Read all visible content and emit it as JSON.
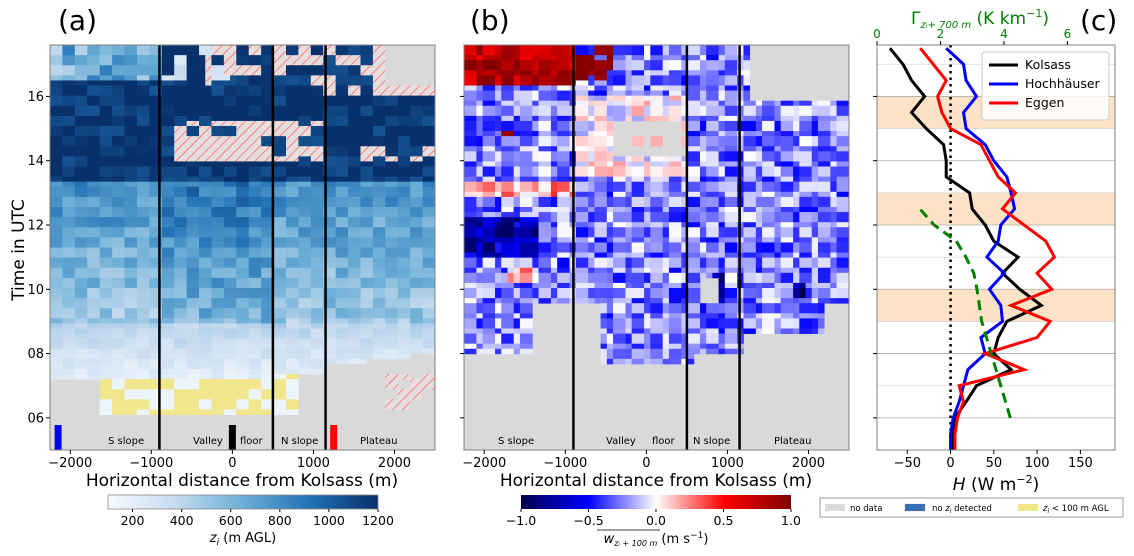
{
  "figure": {
    "panel_labels": [
      "(a)",
      "(b)",
      "(c)"
    ]
  },
  "chart_data": [
    {
      "type": "heatmap",
      "panel": "(a)",
      "xlabel": "Horizontal distance from Kolsass (m)",
      "ylabel": "Time in UTC",
      "xlim": [
        -2250,
        2500
      ],
      "ylim": [
        5.0,
        17.6
      ],
      "xticks": [
        -2000,
        -1000,
        0,
        1000,
        2000
      ],
      "xtick_labels": [
        "−2000",
        "−1000",
        "0",
        "1000",
        "2000"
      ],
      "yticks": [
        6,
        8,
        10,
        12,
        14,
        16
      ],
      "ytick_labels": [
        "06",
        "08",
        "10",
        "12",
        "14",
        "16"
      ],
      "region_dividers_x": [
        -900,
        500,
        1150
      ],
      "region_labels": [
        {
          "text": "S slope",
          "x": -1500
        },
        {
          "text": "Valley",
          "x": -300
        },
        {
          "text": "floor",
          "x": 200
        },
        {
          "text": "N slope",
          "x": 820
        },
        {
          "text": "Plateau",
          "x": 1830
        }
      ],
      "site_markers": [
        {
          "name": "Hochhäuser",
          "x": -2150,
          "color": "#0000ff"
        },
        {
          "name": "Kolsass",
          "x": 0,
          "color": "#000000"
        },
        {
          "name": "Eggen",
          "x": 1250,
          "color": "#ff0000"
        }
      ],
      "colorbar": {
        "label": "z_i (m AGL)",
        "label_main": "z",
        "label_sub": "i",
        "label_rest": " (m AGL)",
        "range": [
          100,
          1200
        ],
        "ticks": [
          "200",
          "400",
          "600",
          "800",
          "1000",
          "1200"
        ],
        "tick_values": [
          200,
          400,
          600,
          800,
          1000,
          1200
        ],
        "colormap": "Blues"
      },
      "description": "z_i grows from ~100-300 m at 07-09 UTC to ~500-700 m at 10-13 UTC and exceeds 1100 m after 13.5 UTC; no data before ~07 UTC; hatched areas mark no z_i detected (mostly 14-17.5 UTC over valley floor and plateau); yellow marks z_i < 100 m AGL (06-07 UTC)."
    },
    {
      "type": "heatmap",
      "panel": "(b)",
      "xlabel": "Horizontal distance from Kolsass (m)",
      "xlim": [
        -2250,
        2500
      ],
      "ylim": [
        5.0,
        17.6
      ],
      "xticks": [
        -2000,
        -1000,
        0,
        1000,
        2000
      ],
      "xtick_labels": [
        "−2000",
        "−1000",
        "0",
        "1000",
        "2000"
      ],
      "region_dividers_x": [
        -900,
        500,
        1150
      ],
      "region_labels": [
        {
          "text": "S slope",
          "x": -1500
        },
        {
          "text": "Valley",
          "x": -300
        },
        {
          "text": "floor",
          "x": 200
        },
        {
          "text": "N slope",
          "x": 820
        },
        {
          "text": "Plateau",
          "x": 1830
        }
      ],
      "colorbar": {
        "label": "w_{z_i+100 m} (m s^-1)",
        "label_main": "w",
        "label_sub": "zᵢ + 100 m",
        "label_rest": " (m s",
        "label_sup": "−1",
        "label_close": ")",
        "range": [
          -1.0,
          1.0
        ],
        "ticks": [
          "−1.0",
          "−0.5",
          "0.0",
          "0.5",
          "1.0"
        ],
        "tick_values": [
          -1.0,
          -0.5,
          0.0,
          0.5,
          1.0
        ],
        "colormap": "seismic"
      },
      "description": "Mostly weak subsidence (-0.1 to -0.5 m/s) between 08 and 14 UTC, strongest (-0.6 to -1.0) near -1800 m at 11.5 UTC and near 900 m / 1800 m at 9.5-10 UTC; strong updrafts (+0.6 to +1.0) over the S slope after 16.5 UTC; no data before ~07.5 UTC."
    },
    {
      "type": "line",
      "panel": "(c)",
      "xlabel": "H (W m^-2)",
      "xlabel_main": "H",
      "xlabel_rest": " (W m",
      "xlabel_sup": "−2",
      "xlabel_close": ")",
      "xlim": [
        -85,
        190
      ],
      "ylim": [
        5.0,
        17.6
      ],
      "xticks": [
        -50,
        0,
        50,
        100,
        150
      ],
      "xtick_labels": [
        "−50",
        "0",
        "50",
        "100",
        "150"
      ],
      "top_xlabel": "Γ_{z_i+700 m} (K km^-1)",
      "top_xlabel_main": "Γ",
      "top_xlabel_sub": "zᵢ+ 700 m",
      "top_xlabel_rest": " (K km",
      "top_xlabel_sup": "−1",
      "top_xlabel_close": ")",
      "top_xlim": [
        0,
        7.5
      ],
      "top_xticks": [
        0,
        2,
        4,
        6
      ],
      "top_xtick_labels": [
        "0",
        "2",
        "4",
        "6"
      ],
      "top_axis_color": "#008000",
      "shaded_bands_utc": [
        [
          9,
          10
        ],
        [
          12,
          13
        ],
        [
          15,
          16
        ]
      ],
      "band_color": "#fde3c5",
      "zero_line": "dotted",
      "legend": {
        "placement": "upper-right",
        "entries": [
          "Kolsass",
          "Hochhäuser",
          "Eggen"
        ]
      },
      "series": [
        {
          "name": "Kolsass",
          "color": "#000000",
          "axis": "bottom",
          "t": [
            5.0,
            5.5,
            6.0,
            6.5,
            7.0,
            7.5,
            8.0,
            8.5,
            9.0,
            9.5,
            10.0,
            10.5,
            11.0,
            11.5,
            12.0,
            12.5,
            13.0,
            13.5,
            14.0,
            14.5,
            15.0,
            15.5,
            16.0,
            16.5,
            17.0,
            17.5
          ],
          "values": [
            3,
            3,
            5,
            18,
            30,
            70,
            50,
            55,
            65,
            105,
            80,
            60,
            78,
            50,
            40,
            25,
            22,
            -5,
            -5,
            -8,
            -28,
            -45,
            -30,
            -45,
            -55,
            -70
          ]
        },
        {
          "name": "Hochhäuser",
          "color": "#0000ff",
          "axis": "bottom",
          "t": [
            5.0,
            5.5,
            6.0,
            6.5,
            7.0,
            7.5,
            8.0,
            8.5,
            9.0,
            9.5,
            10.0,
            10.5,
            11.0,
            11.5,
            12.0,
            12.5,
            13.0,
            13.5,
            14.0,
            14.5,
            15.0,
            15.5,
            16.0,
            16.5,
            17.0,
            17.5
          ],
          "values": [
            0,
            0,
            3,
            10,
            15,
            20,
            40,
            35,
            60,
            58,
            45,
            62,
            42,
            55,
            58,
            74,
            70,
            65,
            50,
            40,
            18,
            15,
            30,
            18,
            15,
            -5
          ]
        },
        {
          "name": "Eggen",
          "color": "#ff0000",
          "axis": "bottom",
          "t": [
            5.0,
            5.5,
            6.0,
            6.5,
            7.0,
            7.5,
            8.0,
            8.5,
            9.0,
            9.5,
            10.0,
            10.5,
            11.0,
            11.5,
            12.0,
            12.5,
            13.0,
            13.5,
            14.0,
            14.5,
            15.0,
            15.5,
            16.0,
            16.5,
            17.0,
            17.5
          ],
          "values": [
            5,
            5,
            8,
            15,
            10,
            85,
            40,
            100,
            115,
            70,
            117,
            100,
            120,
            110,
            85,
            60,
            75,
            55,
            45,
            35,
            0,
            -10,
            -15,
            -5,
            -20,
            -35
          ]
        },
        {
          "name": "Γ (K km^-1)",
          "color": "#008000",
          "axis": "top",
          "style": "dashed",
          "t": [
            6.0,
            7.0,
            8.0,
            9.0,
            10.0,
            10.5,
            11.0,
            11.5,
            12.0,
            12.5
          ],
          "values": [
            4.2,
            3.9,
            3.6,
            3.3,
            3.15,
            3.05,
            2.8,
            2.5,
            1.8,
            1.35
          ]
        }
      ]
    }
  ],
  "bottom_legend": {
    "entries": [
      {
        "label": "no data",
        "swatch": "#d9d9d9"
      },
      {
        "label_pre": "no ",
        "label_var": "z",
        "label_sub": "i",
        "label_post": " detected",
        "label": "no z_i detected",
        "swatch": "#3571b5"
      },
      {
        "label_var": "z",
        "label_sub": "i",
        "label_post": " < 100 m AGL",
        "label": "z_i < 100 m AGL",
        "swatch": "#f0e68c"
      }
    ]
  }
}
